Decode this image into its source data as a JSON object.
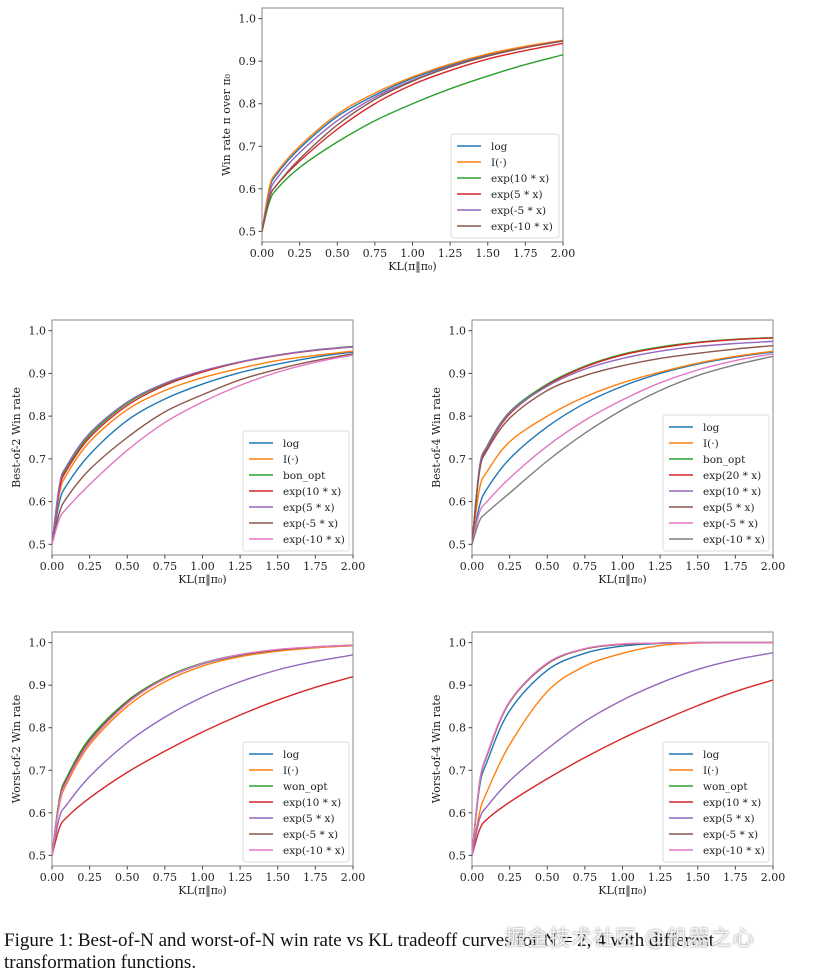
{
  "figure": {
    "caption": "Figure 1: Best-of-N and worst-of-N win rate vs KL tradeoff curves for N = 2, 4 with different transformation functions.",
    "watermark": "掘金技术社区 @机器之心"
  },
  "colors": {
    "log": "#1f77b4",
    "identity": "#ff7f0e",
    "green": "#2ca02c",
    "red": "#d62728",
    "purple": "#9467bd",
    "brown": "#8c564b",
    "pink": "#e377c2",
    "gray": "#7f7f7f"
  },
  "chart_data": [
    {
      "id": "top",
      "type": "line",
      "title": "",
      "xlabel": "KL(π‖π₀)",
      "ylabel": "Win rate π over π₀",
      "xlim": [
        0,
        2
      ],
      "ylim": [
        0.475,
        1.025
      ],
      "xticks": [
        "0.00",
        "0.25",
        "0.50",
        "0.75",
        "1.00",
        "1.25",
        "1.50",
        "1.75",
        "2.00"
      ],
      "yticks": [
        "0.5",
        "0.6",
        "0.7",
        "0.8",
        "0.9",
        "1.0"
      ],
      "legend_position": "lower-right",
      "x": [
        0,
        0.05,
        0.1,
        0.25,
        0.5,
        0.75,
        1.0,
        1.25,
        1.5,
        1.75,
        2.0
      ],
      "series": [
        {
          "name": "log",
          "color": "#1f77b4",
          "values": [
            0.5,
            0.6,
            0.635,
            0.695,
            0.77,
            0.82,
            0.86,
            0.89,
            0.915,
            0.933,
            0.948
          ]
        },
        {
          "name": "I(·)",
          "color": "#ff7f0e",
          "values": [
            0.5,
            0.605,
            0.64,
            0.7,
            0.775,
            0.825,
            0.863,
            0.893,
            0.917,
            0.935,
            0.949
          ]
        },
        {
          "name": "exp(10 * x)",
          "color": "#2ca02c",
          "values": [
            0.5,
            0.57,
            0.6,
            0.65,
            0.71,
            0.76,
            0.8,
            0.835,
            0.865,
            0.892,
            0.915
          ]
        },
        {
          "name": "exp(5 * x)",
          "color": "#d62728",
          "values": [
            0.5,
            0.58,
            0.61,
            0.665,
            0.74,
            0.8,
            0.845,
            0.878,
            0.905,
            0.925,
            0.942
          ]
        },
        {
          "name": "exp(-5 * x)",
          "color": "#9467bd",
          "values": [
            0.5,
            0.59,
            0.625,
            0.685,
            0.76,
            0.815,
            0.855,
            0.887,
            0.912,
            0.932,
            0.947
          ]
        },
        {
          "name": "exp(-10 * x)",
          "color": "#8c564b",
          "values": [
            0.5,
            0.58,
            0.61,
            0.67,
            0.75,
            0.81,
            0.853,
            0.886,
            0.912,
            0.932,
            0.948
          ]
        }
      ]
    },
    {
      "id": "best2",
      "type": "line",
      "title": "",
      "xlabel": "KL(π‖π₀)",
      "ylabel": "Best-of-2 Win rate",
      "xlim": [
        0,
        2
      ],
      "ylim": [
        0.475,
        1.025
      ],
      "xticks": [
        "0.00",
        "0.25",
        "0.50",
        "0.75",
        "1.00",
        "1.25",
        "1.50",
        "1.75",
        "2.00"
      ],
      "yticks": [
        "0.5",
        "0.6",
        "0.7",
        "0.8",
        "0.9",
        "1.0"
      ],
      "legend_position": "lower-right",
      "x": [
        0,
        0.05,
        0.1,
        0.25,
        0.5,
        0.75,
        1.0,
        1.25,
        1.5,
        1.75,
        2.0
      ],
      "series": [
        {
          "name": "log",
          "color": "#1f77b4",
          "values": [
            0.5,
            0.6,
            0.64,
            0.71,
            0.79,
            0.84,
            0.875,
            0.902,
            0.922,
            0.938,
            0.95
          ]
        },
        {
          "name": "I(·)",
          "color": "#ff7f0e",
          "values": [
            0.5,
            0.62,
            0.665,
            0.74,
            0.815,
            0.86,
            0.89,
            0.912,
            0.93,
            0.942,
            0.952
          ]
        },
        {
          "name": "bon_opt",
          "color": "#2ca02c",
          "values": [
            0.5,
            0.635,
            0.68,
            0.755,
            0.83,
            0.875,
            0.905,
            0.927,
            0.943,
            0.955,
            0.963
          ]
        },
        {
          "name": "exp(10 * x)",
          "color": "#d62728",
          "values": [
            0.5,
            0.63,
            0.675,
            0.75,
            0.825,
            0.872,
            0.903,
            0.926,
            0.942,
            0.954,
            0.962
          ]
        },
        {
          "name": "exp(5 * x)",
          "color": "#9467bd",
          "values": [
            0.5,
            0.64,
            0.685,
            0.76,
            0.833,
            0.877,
            0.906,
            0.927,
            0.943,
            0.955,
            0.962
          ]
        },
        {
          "name": "exp(-5 * x)",
          "color": "#8c564b",
          "values": [
            0.5,
            0.575,
            0.61,
            0.675,
            0.75,
            0.81,
            0.85,
            0.885,
            0.91,
            0.93,
            0.946
          ]
        },
        {
          "name": "exp(-10 * x)",
          "color": "#e377c2",
          "values": [
            0.5,
            0.56,
            0.585,
            0.64,
            0.72,
            0.785,
            0.833,
            0.872,
            0.903,
            0.926,
            0.943
          ]
        }
      ]
    },
    {
      "id": "best4",
      "type": "line",
      "title": "",
      "xlabel": "KL(π‖π₀)",
      "ylabel": "Best-of-4 Win rate",
      "xlim": [
        0,
        2
      ],
      "ylim": [
        0.475,
        1.025
      ],
      "xticks": [
        "0.00",
        "0.25",
        "0.50",
        "0.75",
        "1.00",
        "1.25",
        "1.50",
        "1.75",
        "2.00"
      ],
      "yticks": [
        "0.5",
        "0.6",
        "0.7",
        "0.8",
        "0.9",
        "1.0"
      ],
      "legend_position": "lower-right",
      "x": [
        0,
        0.05,
        0.1,
        0.25,
        0.5,
        0.75,
        1.0,
        1.25,
        1.5,
        1.75,
        2.0
      ],
      "series": [
        {
          "name": "log",
          "color": "#1f77b4",
          "values": [
            0.5,
            0.59,
            0.63,
            0.7,
            0.775,
            0.83,
            0.87,
            0.9,
            0.922,
            0.938,
            0.95
          ]
        },
        {
          "name": "I(·)",
          "color": "#ff7f0e",
          "values": [
            0.5,
            0.63,
            0.67,
            0.74,
            0.8,
            0.845,
            0.878,
            0.903,
            0.924,
            0.94,
            0.952
          ]
        },
        {
          "name": "bon_opt",
          "color": "#2ca02c",
          "values": [
            0.5,
            0.68,
            0.73,
            0.81,
            0.875,
            0.917,
            0.945,
            0.962,
            0.973,
            0.98,
            0.984
          ]
        },
        {
          "name": "exp(20 * x)",
          "color": "#d62728",
          "values": [
            0.5,
            0.675,
            0.725,
            0.805,
            0.872,
            0.915,
            0.943,
            0.96,
            0.972,
            0.979,
            0.983
          ]
        },
        {
          "name": "exp(10 * x)",
          "color": "#9467bd",
          "values": [
            0.5,
            0.68,
            0.728,
            0.808,
            0.87,
            0.91,
            0.935,
            0.952,
            0.963,
            0.97,
            0.975
          ]
        },
        {
          "name": "exp(5 * x)",
          "color": "#8c564b",
          "values": [
            0.5,
            0.67,
            0.72,
            0.795,
            0.86,
            0.895,
            0.918,
            0.935,
            0.947,
            0.957,
            0.965
          ]
        },
        {
          "name": "exp(-5 * x)",
          "color": "#e377c2",
          "values": [
            0.5,
            0.575,
            0.6,
            0.655,
            0.73,
            0.79,
            0.838,
            0.878,
            0.908,
            0.93,
            0.946
          ]
        },
        {
          "name": "exp(-10 * x)",
          "color": "#7f7f7f",
          "values": [
            0.5,
            0.555,
            0.575,
            0.62,
            0.695,
            0.76,
            0.815,
            0.86,
            0.895,
            0.92,
            0.94
          ]
        }
      ]
    },
    {
      "id": "worst2",
      "type": "line",
      "title": "",
      "xlabel": "KL(π‖π₀)",
      "ylabel": "Worst-of-2 Win rate",
      "xlim": [
        0,
        2
      ],
      "ylim": [
        0.475,
        1.025
      ],
      "xticks": [
        "0.00",
        "0.25",
        "0.50",
        "0.75",
        "1.00",
        "1.25",
        "1.50",
        "1.75",
        "2.00"
      ],
      "yticks": [
        "0.5",
        "0.6",
        "0.7",
        "0.8",
        "0.9",
        "1.0"
      ],
      "legend_position": "lower-right",
      "x": [
        0,
        0.05,
        0.1,
        0.25,
        0.5,
        0.75,
        1.0,
        1.25,
        1.5,
        1.75,
        2.0
      ],
      "series": [
        {
          "name": "log",
          "color": "#1f77b4",
          "values": [
            0.5,
            0.63,
            0.68,
            0.77,
            0.86,
            0.915,
            0.95,
            0.97,
            0.982,
            0.989,
            0.993
          ]
        },
        {
          "name": "I(·)",
          "color": "#ff7f0e",
          "values": [
            0.5,
            0.62,
            0.67,
            0.76,
            0.85,
            0.908,
            0.945,
            0.967,
            0.98,
            0.988,
            0.993
          ]
        },
        {
          "name": "won_opt",
          "color": "#2ca02c",
          "values": [
            0.5,
            0.635,
            0.685,
            0.775,
            0.863,
            0.918,
            0.952,
            0.972,
            0.983,
            0.99,
            0.994
          ]
        },
        {
          "name": "exp(10 * x)",
          "color": "#d62728",
          "values": [
            0.5,
            0.565,
            0.59,
            0.635,
            0.695,
            0.745,
            0.79,
            0.83,
            0.865,
            0.895,
            0.92
          ]
        },
        {
          "name": "exp(5 * x)",
          "color": "#9467bd",
          "values": [
            0.5,
            0.59,
            0.62,
            0.685,
            0.765,
            0.825,
            0.872,
            0.908,
            0.936,
            0.956,
            0.971
          ]
        },
        {
          "name": "exp(-5 * x)",
          "color": "#8c564b",
          "values": [
            0.5,
            0.63,
            0.68,
            0.77,
            0.86,
            0.916,
            0.951,
            0.971,
            0.983,
            0.99,
            0.994
          ]
        },
        {
          "name": "exp(-10 * x)",
          "color": "#e377c2",
          "values": [
            0.5,
            0.625,
            0.675,
            0.765,
            0.857,
            0.915,
            0.951,
            0.972,
            0.984,
            0.99,
            0.994
          ]
        }
      ]
    },
    {
      "id": "worst4",
      "type": "line",
      "title": "",
      "xlabel": "KL(π‖π₀)",
      "ylabel": "Worst-of-4 Win rate",
      "xlim": [
        0,
        2
      ],
      "ylim": [
        0.475,
        1.025
      ],
      "xticks": [
        "0.00",
        "0.25",
        "0.50",
        "0.75",
        "1.00",
        "1.25",
        "1.50",
        "1.75",
        "2.00"
      ],
      "yticks": [
        "0.5",
        "0.6",
        "0.7",
        "0.8",
        "0.9",
        "1.0"
      ],
      "legend_position": "lower-right",
      "x": [
        0,
        0.05,
        0.1,
        0.25,
        0.5,
        0.75,
        1.0,
        1.25,
        1.5,
        1.75,
        2.0
      ],
      "series": [
        {
          "name": "log",
          "color": "#1f77b4",
          "values": [
            0.5,
            0.66,
            0.72,
            0.84,
            0.935,
            0.975,
            0.992,
            0.998,
            1.0,
            1.0,
            1.0
          ]
        },
        {
          "name": "I(·)",
          "color": "#ff7f0e",
          "values": [
            0.5,
            0.6,
            0.65,
            0.76,
            0.885,
            0.945,
            0.975,
            0.993,
            0.999,
            1.0,
            1.0
          ]
        },
        {
          "name": "won_opt",
          "color": "#2ca02c",
          "values": [
            0.5,
            0.67,
            0.735,
            0.86,
            0.95,
            0.985,
            0.996,
            0.999,
            1.0,
            1.0,
            1.0
          ]
        },
        {
          "name": "exp(10 * x)",
          "color": "#d62728",
          "values": [
            0.5,
            0.56,
            0.585,
            0.625,
            0.68,
            0.73,
            0.775,
            0.815,
            0.852,
            0.885,
            0.912
          ]
        },
        {
          "name": "exp(5 * x)",
          "color": "#9467bd",
          "values": [
            0.5,
            0.585,
            0.615,
            0.675,
            0.75,
            0.815,
            0.865,
            0.905,
            0.937,
            0.96,
            0.976
          ]
        },
        {
          "name": "exp(-5 * x)",
          "color": "#8c564b",
          "values": [
            0.5,
            0.67,
            0.735,
            0.86,
            0.95,
            0.985,
            0.996,
            0.999,
            1.0,
            1.0,
            1.0
          ]
        },
        {
          "name": "exp(-10 * x)",
          "color": "#e377c2",
          "values": [
            0.5,
            0.67,
            0.738,
            0.862,
            0.952,
            0.986,
            0.997,
            0.999,
            1.0,
            1.0,
            1.0
          ]
        }
      ]
    }
  ]
}
